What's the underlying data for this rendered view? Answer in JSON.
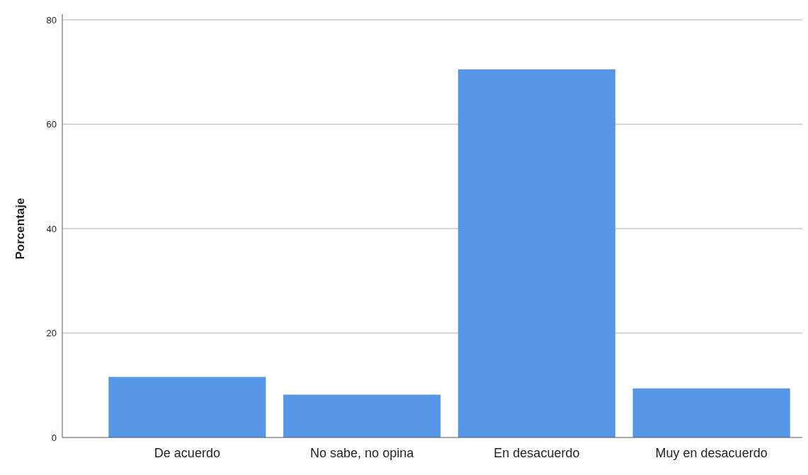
{
  "chart_data": {
    "type": "bar",
    "ylabel": "Porcentaje",
    "categories": [
      "De acuerdo",
      "No sabe, no opina",
      "En desacuerdo",
      "Muy en desacuerdo"
    ],
    "values": [
      11.6,
      8.2,
      70.5,
      9.4
    ],
    "color": "#5596e6",
    "ylim": [
      0,
      80
    ],
    "yticks": [
      0,
      20,
      40,
      60,
      80
    ],
    "grid": "y"
  }
}
